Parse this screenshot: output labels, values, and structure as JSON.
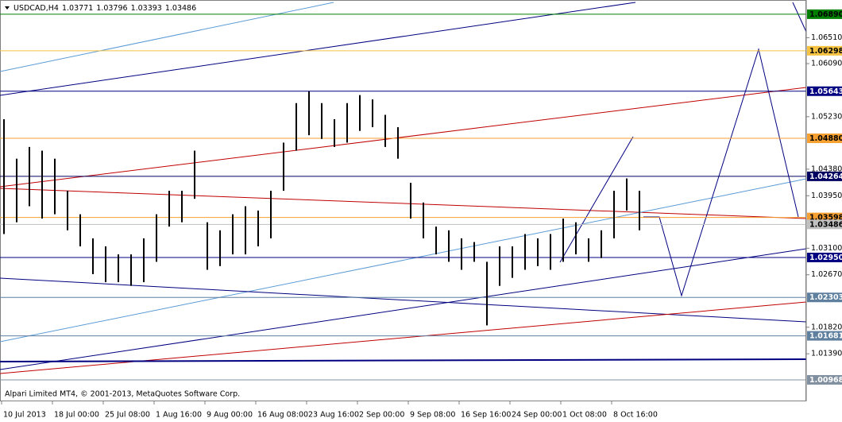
{
  "chart_data": {
    "type": "ohlc",
    "symbol": "USDCAD,H4",
    "quote": [
      1.03771,
      1.03796,
      1.03393,
      1.03486
    ],
    "footer": "Alpari Limited MT4, © 2001-2013, MetaQuotes Software Corp.",
    "color": "#000000",
    "categories": [
      "10 Jul 2013",
      "18 Jul 00:00",
      "25 Jul 08:00",
      "1 Aug 16:00",
      "9 Aug 00:00",
      "16 Aug 08:00",
      "23 Aug 16:00",
      "2 Sep 00:00",
      "9 Sep 08:00",
      "16 Sep 16:00",
      "24 Sep 00:00",
      "1 Oct 08:00",
      "8 Oct 16:00"
    ],
    "high": [
      1.0519,
      1.0455,
      1.0474,
      1.0468,
      1.0455,
      1.0403,
      1.0365,
      1.0326,
      1.0313,
      1.03,
      1.03,
      1.0326,
      1.0365,
      1.0403,
      1.0403,
      1.0468,
      1.0352,
      1.0339,
      1.0365,
      1.0378,
      1.0371,
      1.0403,
      1.0481,
      1.0545,
      1.0564,
      1.0545,
      1.0519,
      1.0545,
      1.0558,
      1.0551,
      1.0526,
      1.0506,
      1.0416,
      1.0384,
      1.0345,
      1.0339,
      1.0326,
      1.032,
      1.0288,
      1.0313,
      1.0313,
      1.0333,
      1.0326,
      1.0333,
      1.0358,
      1.0352,
      1.0326,
      1.0339,
      1.0403,
      1.0423,
      1.0403
    ],
    "low": [
      1.0333,
      1.0352,
      1.0378,
      1.0358,
      1.0365,
      1.0339,
      1.0313,
      1.0268,
      1.0255,
      1.0255,
      1.0249,
      1.0255,
      1.0288,
      1.0345,
      1.0352,
      1.039,
      1.0275,
      1.0281,
      1.03,
      1.03,
      1.0313,
      1.0326,
      1.0403,
      1.0468,
      1.0493,
      1.0487,
      1.0474,
      1.0481,
      1.05,
      1.0506,
      1.0474,
      1.0455,
      1.0358,
      1.0326,
      1.03,
      1.0288,
      1.0275,
      1.0288,
      1.0185,
      1.0249,
      1.0262,
      1.0275,
      1.0281,
      1.0275,
      1.0288,
      1.03,
      1.0288,
      1.0294,
      1.0326,
      1.0371,
      1.0339
    ],
    "ylim": [
      1.0062,
      1.0712
    ],
    "yticks": [
      {
        "value": 1.0651,
        "label": "1.06510"
      },
      {
        "value": 1.0609,
        "label": "1.06090"
      },
      {
        "value": 1.0523,
        "label": "1.05230"
      },
      {
        "value": 1.0438,
        "label": "1.04380"
      },
      {
        "value": 1.0395,
        "label": "1.03950"
      },
      {
        "value": 1.031,
        "label": "1.03100"
      },
      {
        "value": 1.0267,
        "label": "1.02670"
      },
      {
        "value": 1.0182,
        "label": "1.01820"
      },
      {
        "value": 1.0139,
        "label": "1.01390"
      }
    ],
    "levels": [
      {
        "value": 1.0689,
        "label": "1.06890",
        "color": "#008000",
        "text_color": "#000000"
      },
      {
        "value": 1.06298,
        "label": "1.06298",
        "color": "#f5c242",
        "text_color": "#000000"
      },
      {
        "value": 1.05643,
        "label": "1.05643",
        "color": "#000080",
        "text_color": "#ffffff"
      },
      {
        "value": 1.0488,
        "label": "1.04880",
        "color": "#f5a030",
        "text_color": "#000000"
      },
      {
        "value": 1.04264,
        "label": "1.04264",
        "color": "#000060",
        "text_color": "#ffffff"
      },
      {
        "value": 1.03598,
        "label": "1.03598",
        "color": "#f5a030",
        "text_color": "#000000"
      },
      {
        "value": 1.03486,
        "label": "1.03486",
        "color": "#c0c0c0",
        "text_color": "#000000"
      },
      {
        "value": 1.0295,
        "label": "1.02950",
        "color": "#000080",
        "text_color": "#ffffff"
      },
      {
        "value": 1.02303,
        "label": "1.02303",
        "color": "#5f7f9f",
        "text_color": "#ffffff"
      },
      {
        "value": 1.01681,
        "label": "1.01681",
        "color": "#5f7f9f",
        "text_color": "#ffffff"
      },
      {
        "value": 1.00968,
        "label": "1.00968",
        "color": "#8090a0",
        "text_color": "#ffffff"
      }
    ]
  }
}
